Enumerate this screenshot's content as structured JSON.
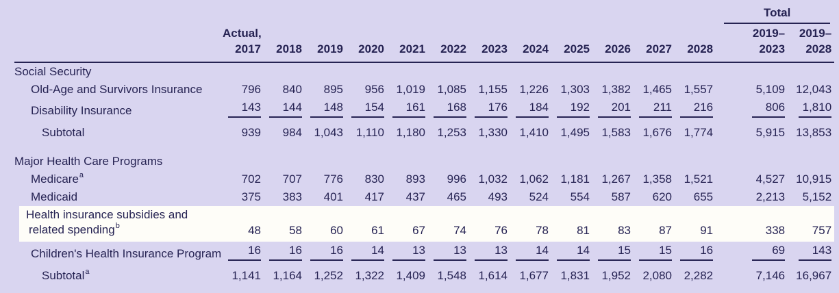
{
  "table": {
    "colors": {
      "background": "#d9d5f0",
      "text": "#262353",
      "rule": "#262353",
      "highlight_row_background": "#fefdf8"
    },
    "header": {
      "total_label": "Total",
      "actual_label": "Actual,",
      "years": [
        "2017",
        "2018",
        "2019",
        "2020",
        "2021",
        "2022",
        "2023",
        "2024",
        "2025",
        "2026",
        "2027",
        "2028"
      ],
      "total_cols": [
        [
          "2019–",
          "2023"
        ],
        [
          "2019–",
          "2028"
        ]
      ]
    },
    "rows": [
      {
        "type": "section",
        "label": "Social Security"
      },
      {
        "type": "data",
        "indent": 1,
        "label": "Old-Age and Survivors Insurance",
        "sup": "",
        "values": [
          "796",
          "840",
          "895",
          "956",
          "1,019",
          "1,085",
          "1,155",
          "1,226",
          "1,303",
          "1,382",
          "1,465",
          "1,557",
          "5,109",
          "12,043"
        ]
      },
      {
        "type": "data",
        "indent": 1,
        "label": "Disability Insurance",
        "sup": "",
        "underline": true,
        "values": [
          "143",
          "144",
          "148",
          "154",
          "161",
          "168",
          "176",
          "184",
          "192",
          "201",
          "211",
          "216",
          "806",
          "1,810"
        ]
      },
      {
        "type": "data",
        "indent": 2,
        "label": "Subtotal",
        "sup": "",
        "subtotal": true,
        "values": [
          "939",
          "984",
          "1,043",
          "1,110",
          "1,180",
          "1,253",
          "1,330",
          "1,410",
          "1,495",
          "1,583",
          "1,676",
          "1,774",
          "5,915",
          "13,853"
        ]
      },
      {
        "type": "spacer"
      },
      {
        "type": "section",
        "label": "Major Health Care Programs"
      },
      {
        "type": "data",
        "indent": 1,
        "label": "Medicare",
        "sup": "a",
        "values": [
          "702",
          "707",
          "776",
          "830",
          "893",
          "996",
          "1,032",
          "1,062",
          "1,181",
          "1,267",
          "1,358",
          "1,521",
          "4,527",
          "10,915"
        ]
      },
      {
        "type": "data",
        "indent": 1,
        "label": "Medicaid",
        "sup": "",
        "values": [
          "375",
          "383",
          "401",
          "417",
          "437",
          "465",
          "493",
          "524",
          "554",
          "587",
          "620",
          "655",
          "2,213",
          "5,152"
        ]
      },
      {
        "type": "data",
        "indent": 1,
        "label_lines": [
          "Health insurance subsidies and",
          "related spending"
        ],
        "sup": "b",
        "highlight": true,
        "values": [
          "48",
          "58",
          "60",
          "61",
          "67",
          "74",
          "76",
          "78",
          "81",
          "83",
          "87",
          "91",
          "338",
          "757"
        ]
      },
      {
        "type": "data",
        "indent": 1,
        "label": "Children's Health Insurance Program",
        "sup": "",
        "underline": true,
        "values": [
          "16",
          "16",
          "16",
          "14",
          "13",
          "13",
          "13",
          "14",
          "14",
          "15",
          "15",
          "16",
          "69",
          "143"
        ]
      },
      {
        "type": "data",
        "indent": 2,
        "label": "Subtotal",
        "sup": "a",
        "subtotal": true,
        "values": [
          "1,141",
          "1,164",
          "1,252",
          "1,322",
          "1,409",
          "1,548",
          "1,614",
          "1,677",
          "1,831",
          "1,952",
          "2,080",
          "2,282",
          "7,146",
          "16,967"
        ]
      }
    ]
  }
}
